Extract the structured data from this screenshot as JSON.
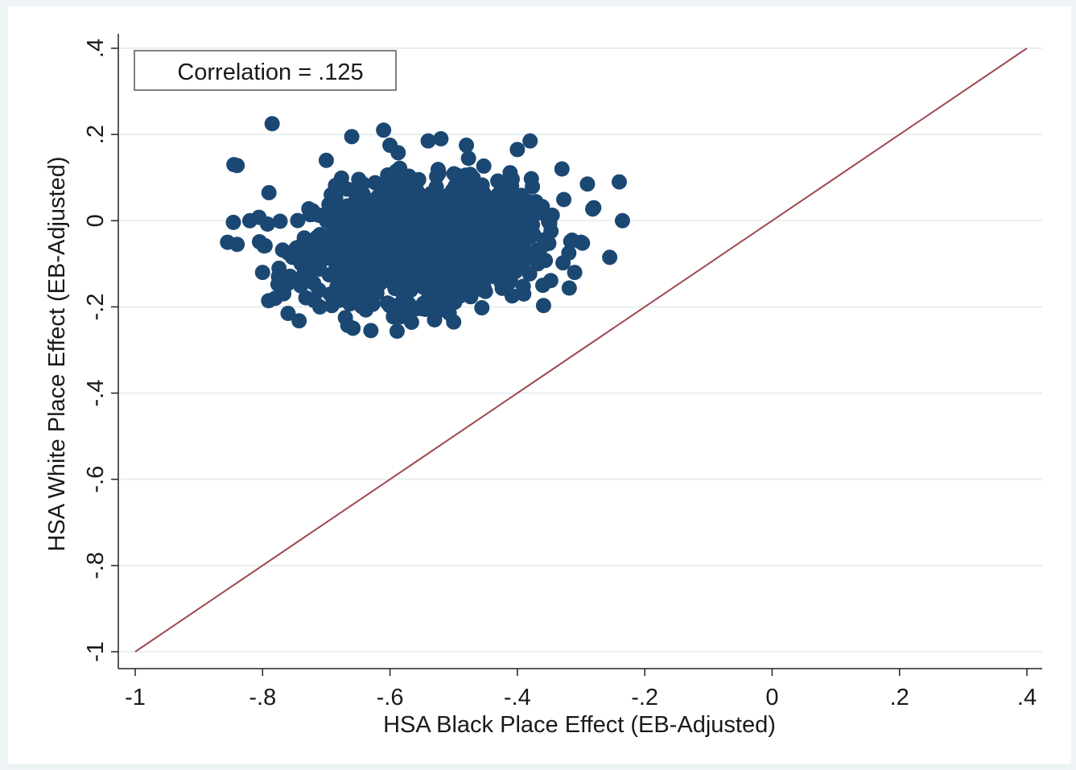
{
  "chart_data": {
    "type": "scatter",
    "title": "",
    "xlabel": "HSA Black Place Effect (EB-Adjusted)",
    "ylabel": "HSA White Place Effect (EB-Adjusted)",
    "xlim": [
      -1,
      0.4
    ],
    "ylim": [
      -1,
      0.4
    ],
    "x_ticks": [
      -1,
      -0.8,
      -0.6,
      -0.4,
      -0.2,
      0,
      0.2,
      0.4
    ],
    "x_tick_labels": [
      "-1",
      "-.8",
      "-.6",
      "-.4",
      "-.2",
      "0",
      ".2",
      ".4"
    ],
    "y_ticks": [
      -1,
      -0.8,
      -0.6,
      -0.4,
      -0.2,
      0,
      0.2,
      0.4
    ],
    "y_tick_labels": [
      "-1",
      "-.8",
      "-.6",
      "-.4",
      "-.2",
      "0",
      ".2",
      ".4"
    ],
    "grid": true,
    "annotation": "Correlation = .125",
    "reference_line": {
      "type": "45-degree",
      "from": [
        -1,
        -1
      ],
      "to": [
        0.4,
        0.4
      ],
      "color": "#a0484f"
    },
    "marker_color": "#1b4872",
    "cluster": {
      "center": [
        -0.55,
        -0.05
      ],
      "correlation": 0.125,
      "count": 1500
    },
    "series": [
      {
        "points": [
          [
            -0.785,
            0.225
          ],
          [
            -0.845,
            0.13
          ],
          [
            -0.84,
            0.128
          ],
          [
            -0.855,
            -0.05
          ],
          [
            -0.84,
            -0.055
          ],
          [
            -0.76,
            -0.215
          ],
          [
            -0.78,
            -0.18
          ],
          [
            -0.24,
            0.09
          ],
          [
            -0.235,
            0.0
          ],
          [
            -0.255,
            -0.085
          ],
          [
            -0.61,
            0.21
          ],
          [
            -0.66,
            0.195
          ],
          [
            -0.63,
            -0.255
          ],
          [
            -0.67,
            -0.225
          ],
          [
            -0.38,
            0.185
          ],
          [
            -0.4,
            0.165
          ],
          [
            -0.36,
            -0.15
          ],
          [
            -0.39,
            -0.17
          ],
          [
            -0.29,
            0.085
          ],
          [
            -0.28,
            0.03
          ],
          [
            -0.79,
            0.065
          ],
          [
            -0.8,
            -0.12
          ],
          [
            -0.82,
            0.0
          ],
          [
            -0.7,
            0.14
          ],
          [
            -0.71,
            -0.2
          ],
          [
            -0.52,
            0.19
          ],
          [
            -0.54,
            0.185
          ],
          [
            -0.48,
            0.175
          ],
          [
            -0.5,
            -0.235
          ],
          [
            -0.53,
            -0.23
          ],
          [
            -0.33,
            0.12
          ],
          [
            -0.31,
            -0.12
          ],
          [
            -0.3,
            -0.05
          ],
          [
            -0.6,
            0.175
          ],
          [
            -0.57,
            -0.22
          ]
        ]
      }
    ]
  }
}
